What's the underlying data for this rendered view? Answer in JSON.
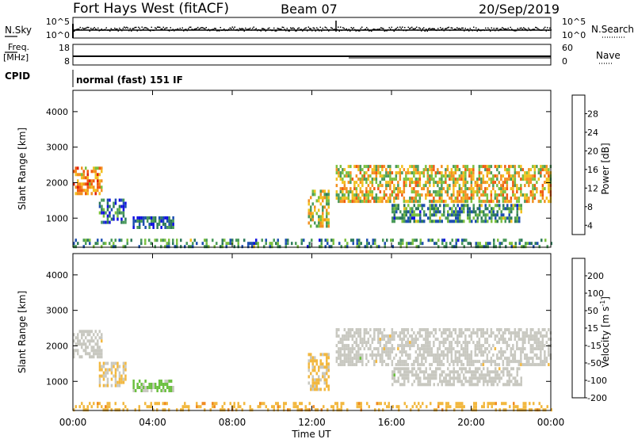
{
  "header": {
    "station": "Fort Hays West (fitACF)",
    "beam": "Beam 07",
    "date": "20/Sep/2019"
  },
  "params": {
    "nsky_label": "N.Sky",
    "nsky_ticks": [
      "10^5",
      "10^0"
    ],
    "nsearch_label": "N.Search",
    "nsearch_ticks": [
      "10^5",
      "10^0"
    ],
    "freq_label": "Freq.",
    "freq_unit": "[MHz]",
    "freq_ticks": [
      "18",
      "8"
    ],
    "nave_label": "Nave",
    "nave_ticks": [
      "60",
      "0"
    ],
    "cpid_label": "CPID",
    "cpid_text": "normal (fast) 151 IF"
  },
  "colors": {
    "power_scale": [
      "#1010e0",
      "#1e4fb0",
      "#2e7a5a",
      "#4a9a5a",
      "#7cc040",
      "#f2c020",
      "#f39020",
      "#f05a10",
      "#e0200a"
    ],
    "velocity_scale": [
      "#2020c8",
      "#2a6fb0",
      "#2e8a4e",
      "#6cc040",
      "#c8c8c0",
      "#f2b840",
      "#f08a20",
      "#f05010",
      "#e01010"
    ],
    "grey_ground": "#c8c8c0"
  },
  "chart_data": [
    {
      "type": "heatmap",
      "panel": "power",
      "xlabel": "",
      "ylabel": "Slant Range [km]",
      "x_ticks": [
        "00:00",
        "04:00",
        "08:00",
        "12:00",
        "16:00",
        "20:00",
        "00:00"
      ],
      "xlim_hours": [
        0,
        24
      ],
      "ylim": [
        180,
        4600
      ],
      "y_ticks": [
        1000,
        2000,
        3000,
        4000
      ],
      "colorbar_label": "Power [dB]",
      "colorbar_ticks": [
        "28",
        "24",
        "20",
        "16",
        "12",
        "8",
        "4"
      ],
      "clim": [
        0,
        30
      ],
      "echo_regions": [
        {
          "t0": 0.0,
          "t1": 1.4,
          "r0": 1700,
          "r1": 2450,
          "v": 22
        },
        {
          "t0": 1.3,
          "t1": 2.6,
          "r0": 850,
          "r1": 1550,
          "v": 8
        },
        {
          "t0": 3.0,
          "t1": 5.0,
          "r0": 750,
          "r1": 1050,
          "v": 6
        },
        {
          "t0": 11.8,
          "t1": 12.8,
          "r0": 800,
          "r1": 1800,
          "v": 16
        },
        {
          "t0": 13.2,
          "t1": 24.0,
          "r0": 1500,
          "r1": 2500,
          "v": 18
        },
        {
          "t0": 16.0,
          "t1": 22.5,
          "r0": 900,
          "r1": 1400,
          "v": 10
        },
        {
          "t0": 0.0,
          "t1": 24.0,
          "r0": 180,
          "r1": 420,
          "v": 10
        }
      ]
    },
    {
      "type": "heatmap",
      "panel": "velocity",
      "xlabel": "Time UT",
      "ylabel": "Slant Range [km]",
      "x_ticks": [
        "00:00",
        "04:00",
        "08:00",
        "12:00",
        "16:00",
        "20:00",
        "00:00"
      ],
      "xlim_hours": [
        0,
        24
      ],
      "ylim": [
        180,
        4600
      ],
      "y_ticks": [
        1000,
        2000,
        3000,
        4000
      ],
      "colorbar_label": "Velocity [m s",
      "colorbar_label_sup": "-1",
      "colorbar_ticks": [
        "200",
        "100",
        "50",
        "15",
        "-15",
        "-50",
        "-100",
        "-200"
      ],
      "clim": [
        -250,
        250
      ],
      "echo_regions": [
        {
          "t0": 0.0,
          "t1": 1.4,
          "r0": 1700,
          "r1": 2450,
          "v": 0
        },
        {
          "t0": 1.3,
          "t1": 2.6,
          "r0": 850,
          "r1": 1550,
          "v": -30
        },
        {
          "t0": 3.0,
          "t1": 5.0,
          "r0": 750,
          "r1": 1050,
          "v": 40
        },
        {
          "t0": 11.8,
          "t1": 12.8,
          "r0": 800,
          "r1": 1800,
          "v": -40
        },
        {
          "t0": 13.2,
          "t1": 24.0,
          "r0": 1500,
          "r1": 2500,
          "v": 0
        },
        {
          "t0": 16.0,
          "t1": 22.5,
          "r0": 900,
          "r1": 1400,
          "v": 0
        },
        {
          "t0": 0.0,
          "t1": 24.0,
          "r0": 180,
          "r1": 420,
          "v": -60
        }
      ]
    }
  ]
}
